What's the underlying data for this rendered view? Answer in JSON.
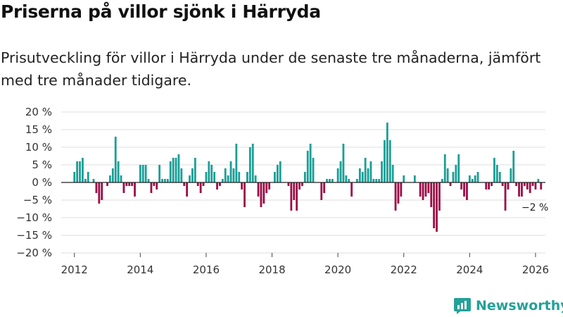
{
  "header": {
    "title": "Priserna på villor sjönk i Härryda",
    "subtitle": "Prisutveckling för villor i Härryda under de senaste tre månaderna, jämfört med tre månader tidigare."
  },
  "brand": {
    "name": "Newsworthy",
    "color": "#24a198"
  },
  "colors": {
    "positive": "#1a9e96",
    "negative": "#9c0b46",
    "grid": "#dddddd",
    "zero": "#222222"
  },
  "chart_data": {
    "type": "bar",
    "title": "Priserna på villor sjönk i Härryda",
    "subtitle": "Prisutveckling för villor i Härryda under de senaste tre månaderna, jämfört med tre månader tidigare.",
    "xlabel": "",
    "ylabel": "",
    "x_start": 2012.0,
    "x_step_years": 0.0833333,
    "xlim": [
      2011.6,
      2026.3
    ],
    "ylim": [
      -20,
      20
    ],
    "yticks": [
      20,
      15,
      10,
      5,
      0,
      -5,
      -10,
      -15,
      -20
    ],
    "ytick_labels": [
      "20 %",
      "15 %",
      "10 %",
      "5 %",
      "0 %",
      "−5 %",
      "−10 %",
      "−15 %",
      "−20 %"
    ],
    "xticks": [
      2012,
      2014,
      2016,
      2018,
      2020,
      2022,
      2024,
      2026
    ],
    "xtick_labels": [
      "2012",
      "2014",
      "2016",
      "2018",
      "2020",
      "2022",
      "2024",
      "2026"
    ],
    "grid": true,
    "annotation": {
      "label": "−2 %",
      "x": 2026.0,
      "y": -2
    },
    "values": [
      3,
      6,
      6,
      7,
      1,
      3,
      0,
      1,
      -3,
      -6,
      -5,
      0,
      -1,
      2,
      4,
      13,
      6,
      2,
      -3,
      -1,
      -1,
      -1,
      -4,
      0,
      5,
      5,
      5,
      1,
      -3,
      -1,
      -2,
      5,
      1,
      1,
      1,
      6,
      7,
      7,
      8,
      4,
      -1,
      -4,
      2,
      4,
      7,
      -1,
      -3,
      -1,
      3,
      6,
      5,
      3,
      -2,
      -1,
      1,
      4,
      2,
      6,
      4,
      11,
      3,
      -2,
      -7,
      3,
      10,
      11,
      2,
      -4,
      -7,
      -6,
      -3,
      -2,
      0,
      3,
      5,
      6,
      0,
      0,
      -1,
      -8,
      -5,
      -8,
      -2,
      -1,
      3,
      9,
      11,
      7,
      0,
      0,
      -5,
      -3,
      1,
      1,
      1,
      0,
      4,
      6,
      11,
      2,
      1,
      -4,
      0,
      1,
      4,
      3,
      7,
      4,
      6,
      1,
      1,
      1,
      6,
      12,
      17,
      12,
      5,
      -8,
      -6,
      -4,
      2,
      0,
      0,
      0,
      2,
      0,
      -4,
      -5,
      -4,
      -3,
      -7,
      -13,
      -14,
      -8,
      1,
      8,
      4,
      -1,
      3,
      5,
      8,
      -2,
      -4,
      -5,
      2,
      1,
      2,
      3,
      0,
      0,
      -2,
      -2,
      -1,
      7,
      5,
      3,
      -1,
      -8,
      -2,
      4,
      9,
      -1,
      -4,
      -4,
      -1,
      -2,
      -3,
      -1,
      -2,
      1,
      -2
    ]
  }
}
